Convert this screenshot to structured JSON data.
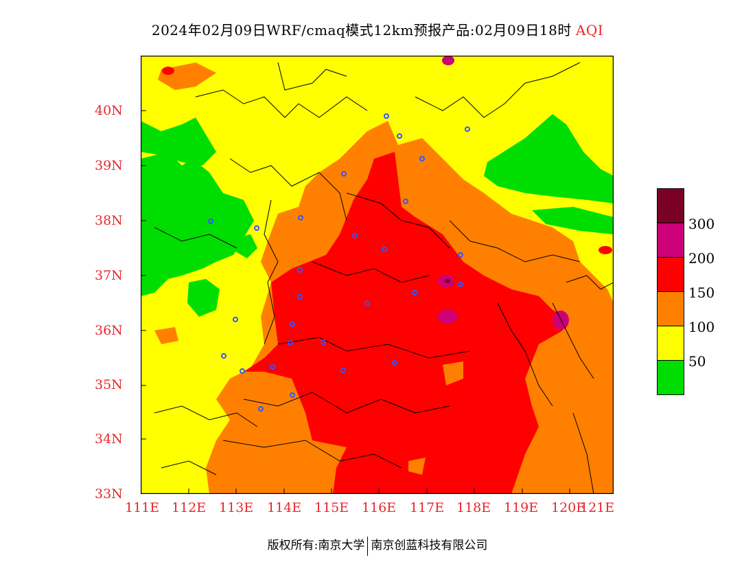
{
  "title": {
    "main": "2024年02月09日WRF/cmaq模式12km预报产品:02月09日18时",
    "variable": "AQI"
  },
  "map": {
    "colors": {
      "good": "#00dd00",
      "moderate": "#ffff00",
      "light": "#ff8000",
      "medium": "#ff0000",
      "heavy": "#cc0077",
      "severe": "#7a0026",
      "city_marker": "#3355ff"
    },
    "lat_ticks": [
      "40N",
      "39N",
      "38N",
      "37N",
      "36N",
      "35N",
      "34N",
      "33N"
    ],
    "lon_ticks": [
      "111E",
      "112E",
      "113E",
      "114E",
      "115E",
      "116E",
      "117E",
      "118E",
      "119E",
      "120E",
      "121E"
    ]
  },
  "legend": {
    "labels": [
      "300",
      "200",
      "150",
      "100",
      "50"
    ]
  },
  "footer": {
    "left": "版权所有:南京大学",
    "right": "南京创蓝科技有限公司"
  }
}
